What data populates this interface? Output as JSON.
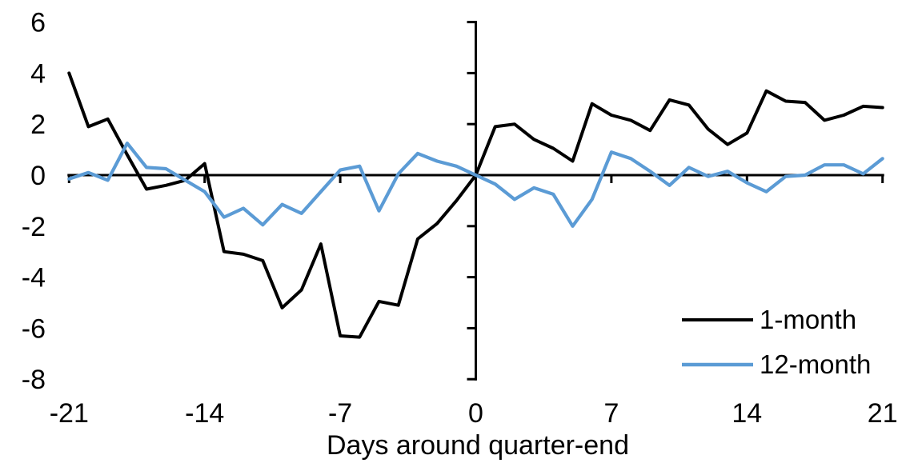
{
  "chart_data": {
    "type": "line",
    "title": "",
    "xlabel": "Days around quarter-end",
    "ylabel": "",
    "xlim": [
      -21,
      21
    ],
    "ylim": [
      -8,
      6
    ],
    "grid": false,
    "legend_position": "inside-bottom-right",
    "x_ticks": [
      -21,
      -14,
      -7,
      0,
      7,
      14,
      21
    ],
    "y_ticks": [
      6,
      4,
      2,
      0,
      -2,
      -4,
      -6,
      -8
    ],
    "x": [
      -21,
      -20,
      -19,
      -18,
      -17,
      -16,
      -15,
      -14,
      -13,
      -12,
      -11,
      -10,
      -9,
      -8,
      -7,
      -6,
      -5,
      -4,
      -3,
      -2,
      -1,
      0,
      1,
      2,
      3,
      4,
      5,
      6,
      7,
      8,
      9,
      10,
      11,
      12,
      13,
      14,
      15,
      16,
      17,
      18,
      19,
      20,
      21
    ],
    "series": [
      {
        "name": "1-month",
        "color": "#000000",
        "values": [
          4.0,
          1.9,
          2.2,
          0.8,
          -0.55,
          -0.4,
          -0.2,
          0.45,
          -3.0,
          -3.1,
          -3.35,
          -5.2,
          -4.5,
          -2.7,
          -6.3,
          -6.35,
          -4.95,
          -5.1,
          -2.5,
          -1.9,
          -1.0,
          0,
          1.9,
          2.0,
          1.4,
          1.05,
          0.55,
          2.8,
          2.35,
          2.15,
          1.75,
          2.95,
          2.75,
          1.8,
          1.2,
          1.65,
          3.3,
          2.9,
          2.85,
          2.15,
          2.35,
          2.7,
          2.65
        ]
      },
      {
        "name": "12-month",
        "color": "#5B9BD5",
        "values": [
          -0.15,
          0.1,
          -0.2,
          1.25,
          0.3,
          0.25,
          -0.2,
          -0.65,
          -1.65,
          -1.3,
          -1.95,
          -1.15,
          -1.5,
          -0.65,
          0.2,
          0.35,
          -1.4,
          0.05,
          0.85,
          0.55,
          0.35,
          0,
          -0.35,
          -0.95,
          -0.5,
          -0.75,
          -2.0,
          -0.95,
          0.9,
          0.65,
          0.15,
          -0.4,
          0.3,
          -0.05,
          0.15,
          -0.3,
          -0.65,
          -0.05,
          0.0,
          0.4,
          0.4,
          0.05,
          0.65
        ]
      }
    ]
  }
}
